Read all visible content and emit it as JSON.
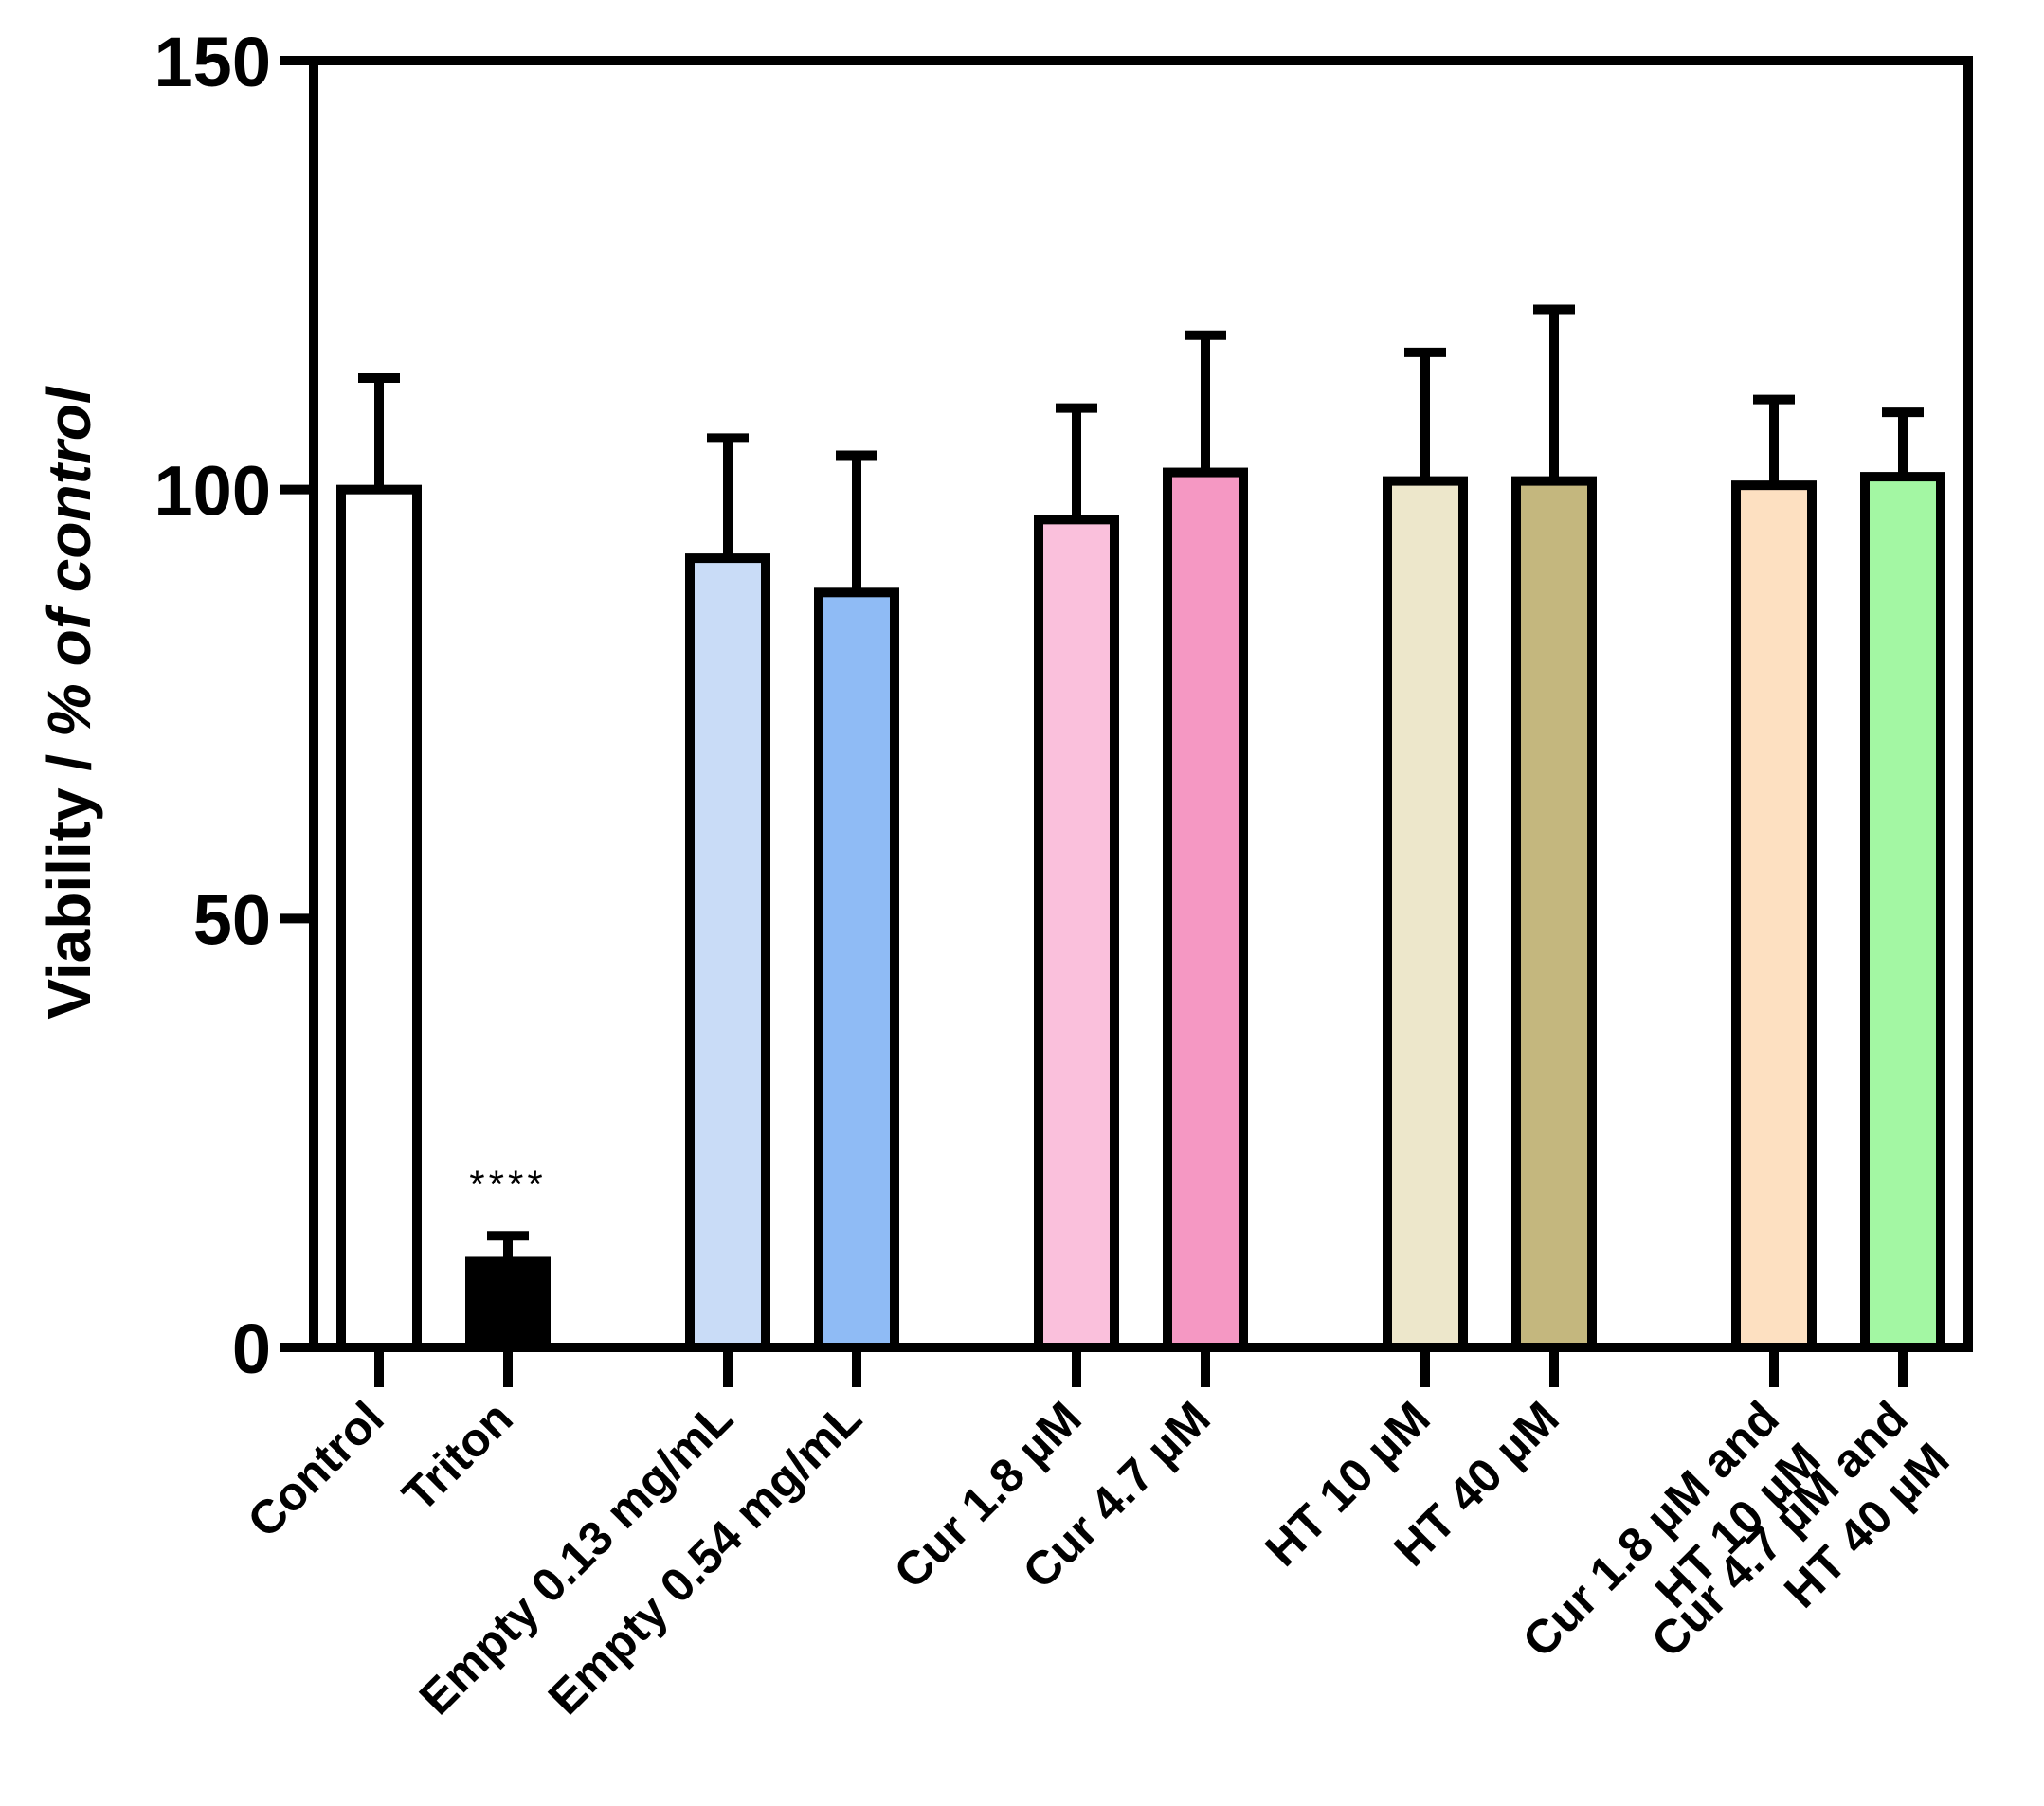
{
  "chart_data": {
    "type": "bar",
    "title": "",
    "xlabel": "",
    "ylabel_parts": [
      "Viability / ",
      "% of control"
    ],
    "ylim": [
      0,
      150
    ],
    "yticks": [
      0,
      50,
      100,
      150
    ],
    "grid": false,
    "bars": [
      {
        "label": [
          "Control"
        ],
        "value": 100,
        "error": 13,
        "color": "#ffffff",
        "group": 0,
        "significance": ""
      },
      {
        "label": [
          "Triton"
        ],
        "value": 10,
        "error": 3,
        "color": "#000000",
        "group": 0,
        "significance": "****"
      },
      {
        "label": [
          "Empty 0.13 mg/mL"
        ],
        "value": 92,
        "error": 14,
        "color": "#c9dcf7",
        "group": 1,
        "significance": ""
      },
      {
        "label": [
          "Empty 0.54 mg/mL"
        ],
        "value": 88,
        "error": 16,
        "color": "#8fbbf5",
        "group": 1,
        "significance": ""
      },
      {
        "label": [
          "Cur 1.8 µM"
        ],
        "value": 96.5,
        "error": 13,
        "color": "#fac0dc",
        "group": 2,
        "significance": ""
      },
      {
        "label": [
          "Cur 4.7 µM"
        ],
        "value": 102,
        "error": 16,
        "color": "#f598c3",
        "group": 2,
        "significance": ""
      },
      {
        "label": [
          "HT 10 µM"
        ],
        "value": 101,
        "error": 15,
        "color": "#ede7cb",
        "group": 3,
        "significance": ""
      },
      {
        "label": [
          "HT 40 µM"
        ],
        "value": 101,
        "error": 20,
        "color": "#c4b77e",
        "group": 3,
        "significance": ""
      },
      {
        "label": [
          "Cur 1.8 µM and",
          "HT 10 µM"
        ],
        "value": 100.5,
        "error": 10,
        "color": "#fde0c1",
        "group": 4,
        "significance": ""
      },
      {
        "label": [
          "Cur 4.7 µM and",
          "HT 40 µM"
        ],
        "value": 101.5,
        "error": 7.5,
        "color": "#a3f7a3",
        "group": 4,
        "significance": ""
      }
    ]
  }
}
